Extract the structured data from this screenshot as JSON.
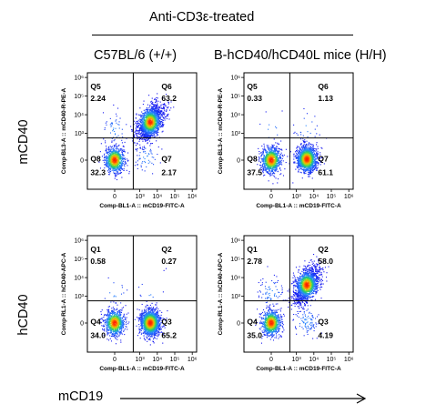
{
  "header": {
    "treatment": "Anti-CD3ε-treated",
    "col_left": "C57BL/6 (+/+)",
    "col_right": "B-hCD40/hCD40L mice (H/H)"
  },
  "rows": {
    "top": "mCD40",
    "bottom": "hCD40"
  },
  "bottom_axis": "mCD19",
  "colors": {
    "density_low": "#1a1aff",
    "density_mid": "#2ecc40",
    "density_high": "#ff2a00",
    "line": "#000000"
  },
  "chart_data": [
    {
      "type": "scatter",
      "id": "p1",
      "xlabel": "Comp-BL1-A :: mCD19-FITC-A",
      "ylabel": "Comp-BL3-A :: mCD40-R-PE-A",
      "x_ticks": [
        "0",
        "10³",
        "10⁴",
        "10⁵",
        "10⁶"
      ],
      "y_ticks": [
        "0",
        "10³",
        "10⁴",
        "10⁵",
        "10⁶"
      ],
      "quadrants": [
        {
          "name": "Q5",
          "value": "2.24",
          "pos": "upper-left"
        },
        {
          "name": "Q6",
          "value": "63.2",
          "pos": "upper-right"
        },
        {
          "name": "Q8",
          "value": "32.3",
          "pos": "lower-left"
        },
        {
          "name": "Q7",
          "value": "2.17",
          "pos": "lower-right"
        }
      ],
      "populations": [
        {
          "cx": 0.2,
          "cy": 0.2,
          "weight": 0.32
        },
        {
          "cx": 3.6,
          "cy": 3.6,
          "weight": 0.63
        },
        {
          "cx": 0.2,
          "cy": 3.2,
          "weight": 0.022
        },
        {
          "cx": 3.4,
          "cy": 0.3,
          "weight": 0.022
        }
      ]
    },
    {
      "type": "scatter",
      "id": "p2",
      "xlabel": "Comp-BL1-A :: mCD19-FITC-A",
      "ylabel": "Comp-BL3-A :: mCD40-R-PE-A",
      "x_ticks": [
        "0",
        "10³",
        "10⁴",
        "10⁵",
        "10⁶"
      ],
      "y_ticks": [
        "0",
        "10³",
        "10⁴",
        "10⁵",
        "10⁶"
      ],
      "quadrants": [
        {
          "name": "Q5",
          "value": "0.33",
          "pos": "upper-left"
        },
        {
          "name": "Q6",
          "value": "1.13",
          "pos": "upper-right"
        },
        {
          "name": "Q8",
          "value": "37.5",
          "pos": "lower-left"
        },
        {
          "name": "Q7",
          "value": "61.1",
          "pos": "lower-right"
        }
      ],
      "populations": [
        {
          "cx": 0.2,
          "cy": 0.2,
          "weight": 0.375
        },
        {
          "cx": 3.6,
          "cy": 0.25,
          "weight": 0.611
        },
        {
          "cx": 0.2,
          "cy": 3.2,
          "weight": 0.003
        },
        {
          "cx": 3.6,
          "cy": 3.3,
          "weight": 0.011
        }
      ]
    },
    {
      "type": "scatter",
      "id": "p3",
      "xlabel": "Comp-BL1-A :: mCD19-FITC-A",
      "ylabel": "Comp-RL1-A :: hCD40-APC-A",
      "x_ticks": [
        "0",
        "10³",
        "10⁴",
        "10⁵",
        "10⁶"
      ],
      "y_ticks": [
        "0",
        "10³",
        "10⁴",
        "10⁵",
        "10⁶"
      ],
      "quadrants": [
        {
          "name": "Q1",
          "value": "0.58",
          "pos": "upper-left"
        },
        {
          "name": "Q2",
          "value": "0.27",
          "pos": "upper-right"
        },
        {
          "name": "Q4",
          "value": "34.0",
          "pos": "lower-left"
        },
        {
          "name": "Q3",
          "value": "65.2",
          "pos": "lower-right"
        }
      ],
      "populations": [
        {
          "cx": 0.2,
          "cy": 0.2,
          "weight": 0.34
        },
        {
          "cx": 3.6,
          "cy": 0.2,
          "weight": 0.652
        },
        {
          "cx": 0.2,
          "cy": 3.2,
          "weight": 0.006
        },
        {
          "cx": 3.6,
          "cy": 3.3,
          "weight": 0.003
        }
      ]
    },
    {
      "type": "scatter",
      "id": "p4",
      "xlabel": "Comp-BL1-A :: mCD19-FITC-A",
      "ylabel": "Comp-RL1-A :: hCD40-APC-A",
      "x_ticks": [
        "0",
        "10³",
        "10⁴",
        "10⁵",
        "10⁶"
      ],
      "y_ticks": [
        "0",
        "10³",
        "10⁴",
        "10⁵",
        "10⁶"
      ],
      "quadrants": [
        {
          "name": "Q1",
          "value": "2.78",
          "pos": "upper-left"
        },
        {
          "name": "Q2",
          "value": "58.0",
          "pos": "upper-right"
        },
        {
          "name": "Q4",
          "value": "35.0",
          "pos": "lower-left"
        },
        {
          "name": "Q3",
          "value": "4.19",
          "pos": "lower-right"
        }
      ],
      "populations": [
        {
          "cx": 0.2,
          "cy": 0.2,
          "weight": 0.35
        },
        {
          "cx": 3.6,
          "cy": 3.6,
          "weight": 0.58
        },
        {
          "cx": 0.2,
          "cy": 3.2,
          "weight": 0.028
        },
        {
          "cx": 3.6,
          "cy": 0.3,
          "weight": 0.042
        }
      ]
    }
  ]
}
